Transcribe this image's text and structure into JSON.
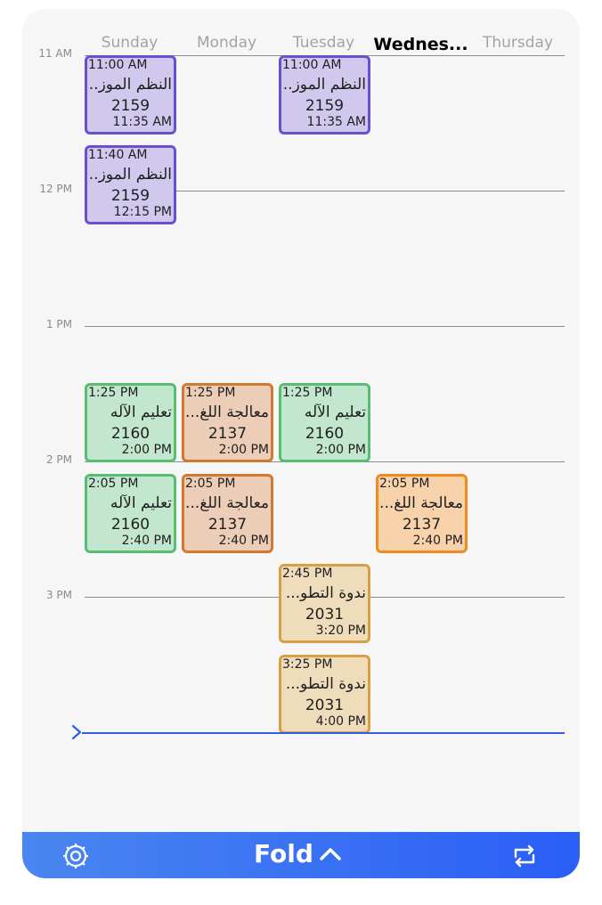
{
  "days": [
    {
      "label": "Sunday",
      "current": false
    },
    {
      "label": "Monday",
      "current": false
    },
    {
      "label": "Tuesday",
      "current": false
    },
    {
      "label": "Wednes...",
      "current": true
    },
    {
      "label": "Thursday",
      "current": false
    }
  ],
  "hours": [
    "11 AM",
    "12 PM",
    "1 PM",
    "2 PM",
    "3 PM"
  ],
  "events": [
    {
      "start": "11:00 AM",
      "title": "النظم الموز...",
      "room": "2159",
      "end": "11:35 AM",
      "color": "purple",
      "day": 0
    },
    {
      "start": "11:00 AM",
      "title": "النظم الموز...",
      "room": "2159",
      "end": "11:35 AM",
      "color": "purple",
      "day": 2
    },
    {
      "start": "11:40 AM",
      "title": "النظم الموز...",
      "room": "2159",
      "end": "12:15 PM",
      "color": "purple",
      "day": 0
    },
    {
      "start": "1:25 PM",
      "title": "تعليم الآله",
      "room": "2160",
      "end": "2:00 PM",
      "color": "green",
      "day": 0
    },
    {
      "start": "1:25 PM",
      "title": "معالجة اللغ...",
      "room": "2137",
      "end": "2:00 PM",
      "color": "brown",
      "day": 1
    },
    {
      "start": "1:25 PM",
      "title": "تعليم الآله",
      "room": "2160",
      "end": "2:00 PM",
      "color": "green",
      "day": 2
    },
    {
      "start": "2:05 PM",
      "title": "تعليم الآله",
      "room": "2160",
      "end": "2:40 PM",
      "color": "green",
      "day": 0
    },
    {
      "start": "2:05 PM",
      "title": "معالجة اللغ...",
      "room": "2137",
      "end": "2:40 PM",
      "color": "brown",
      "day": 1
    },
    {
      "start": "2:05 PM",
      "title": "معالجة اللغ...",
      "room": "2137",
      "end": "2:40 PM",
      "color": "orange",
      "day": 3
    },
    {
      "start": "2:45 PM",
      "title": "ندوة التطو...",
      "room": "2031",
      "end": "3:20 PM",
      "color": "gold",
      "day": 2
    },
    {
      "start": "3:25 PM",
      "title": "ندوة التطو...",
      "room": "2031",
      "end": "4:00 PM",
      "color": "gold",
      "day": 2
    }
  ],
  "bottom_bar": {
    "fold_label": "Fold",
    "left_icon": "settings-gear-icon",
    "fold_icon": "chevron-up-icon",
    "right_icon": "repeat-icon"
  },
  "colors": {
    "accent": "#2f5fe4",
    "now_line": "#2f5fe4"
  }
}
